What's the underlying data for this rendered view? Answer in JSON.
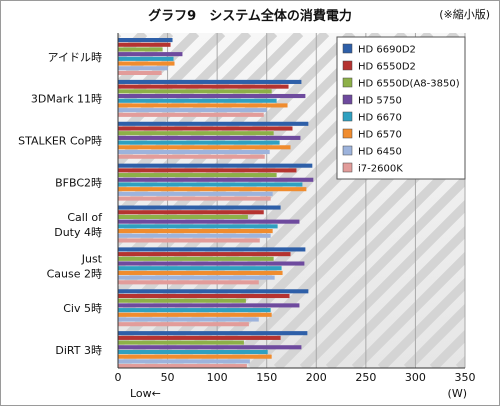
{
  "chart_data": {
    "type": "bar",
    "orientation": "horizontal",
    "title": "グラフ9　システム全体の消費電力",
    "note": "(※縮小版)",
    "categories": [
      "アイドル時",
      "3DMark 11時",
      "STALKER CoP時",
      "BFBC2時",
      "Call of Duty 4時",
      "Just Cause 2時",
      "Civ 5時",
      "DiRT 3時"
    ],
    "category_lines": [
      [
        "アイドル時"
      ],
      [
        "3DMark 11時"
      ],
      [
        "STALKER CoP時"
      ],
      [
        "BFBC2時"
      ],
      [
        "Call of",
        "Duty 4時"
      ],
      [
        "Just",
        "Cause 2時"
      ],
      [
        "Civ 5時"
      ],
      [
        "DiRT 3時"
      ]
    ],
    "series": [
      {
        "name": "HD 6690D2",
        "color": "#2e5fa8",
        "values": [
          55,
          185,
          192,
          196,
          164,
          189,
          192,
          191
        ]
      },
      {
        "name": "HD 6550D2",
        "color": "#b53330",
        "values": [
          53,
          172,
          176,
          180,
          147,
          174,
          173,
          164
        ]
      },
      {
        "name": "HD 6550D(A8-3850)",
        "color": "#8db048",
        "values": [
          45,
          155,
          157,
          160,
          131,
          157,
          129,
          127
        ]
      },
      {
        "name": "HD 5750",
        "color": "#6e4a9e",
        "values": [
          65,
          189,
          184,
          197,
          183,
          188,
          183,
          185
        ]
      },
      {
        "name": "HD 6670",
        "color": "#2fa0c0",
        "values": [
          56,
          160,
          163,
          186,
          161,
          165,
          154,
          151
        ]
      },
      {
        "name": "HD 6570",
        "color": "#f08c2e",
        "values": [
          57,
          171,
          174,
          190,
          156,
          166,
          155,
          155
        ]
      },
      {
        "name": "HD 6450",
        "color": "#9db3dc",
        "values": [
          50,
          150,
          153,
          156,
          154,
          158,
          142,
          133
        ]
      },
      {
        "name": "i7-2600K",
        "color": "#e29c9a",
        "values": [
          44,
          147,
          148,
          154,
          143,
          142,
          132,
          130
        ]
      }
    ],
    "xlim": [
      0,
      350
    ],
    "xticks": [
      0,
      50,
      100,
      150,
      200,
      250,
      300,
      350
    ],
    "xlabel": "(W)",
    "direction_label": "Low←",
    "legend_position": "top-right",
    "grid": true
  }
}
